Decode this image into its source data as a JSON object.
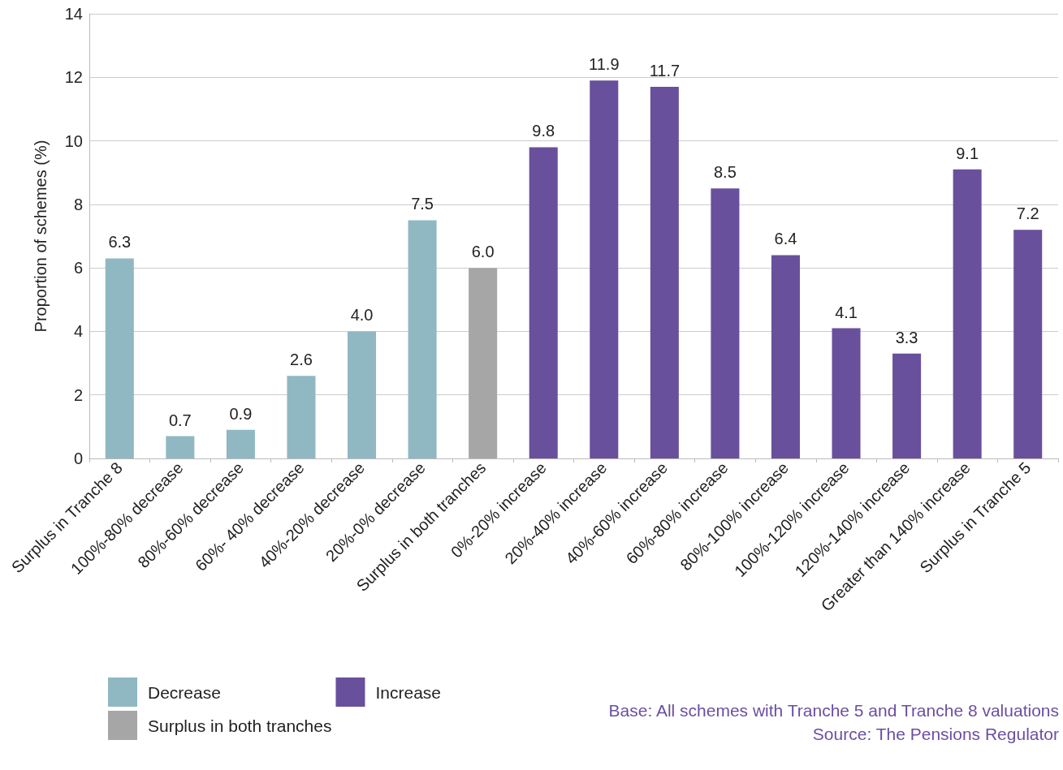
{
  "chart_data": {
    "type": "bar",
    "ylabel": "Proportion of schemes (%)",
    "categories": [
      "Surplus in Tranche 8",
      "100%-80% decrease",
      "80%-60% decrease",
      "60%- 40% decrease",
      "40%-20% decrease",
      "20%-0% decrease",
      "Surplus in both tranches",
      "0%-20% increase",
      "20%-40% increase",
      "40%-60% increase",
      "60%-80% increase",
      "80%-100% increase",
      "100%-120% increase",
      "120%-140% increase",
      "Greater than 140% increase",
      "Surplus in Tranche 5"
    ],
    "series": [
      {
        "name": "Decrease",
        "color": "#8fb8c2",
        "values": [
          6.3,
          0.7,
          0.9,
          2.6,
          4.0,
          7.5,
          null,
          null,
          null,
          null,
          null,
          null,
          null,
          null,
          null,
          null
        ],
        "value_labels": [
          "6.3",
          "0.7",
          "0.9",
          "2.6",
          "4.0",
          "7.5",
          null,
          null,
          null,
          null,
          null,
          null,
          null,
          null,
          null,
          null
        ]
      },
      {
        "name": "Surplus in both tranches",
        "color": "#a6a6a6",
        "values": [
          null,
          null,
          null,
          null,
          null,
          null,
          6.0,
          null,
          null,
          null,
          null,
          null,
          null,
          null,
          null,
          null
        ],
        "value_labels": [
          null,
          null,
          null,
          null,
          null,
          null,
          "6.0",
          null,
          null,
          null,
          null,
          null,
          null,
          null,
          null,
          null
        ]
      },
      {
        "name": "Increase",
        "color": "#68509c",
        "values": [
          null,
          null,
          null,
          null,
          null,
          null,
          null,
          9.8,
          11.9,
          11.7,
          8.5,
          6.4,
          4.1,
          3.3,
          9.1,
          7.2
        ],
        "value_labels": [
          null,
          null,
          null,
          null,
          null,
          null,
          null,
          "9.8",
          "11.9",
          "11.7",
          "8.5",
          "6.4",
          "4.1",
          "3.3",
          "9.1",
          "7.2"
        ]
      }
    ],
    "ylim": [
      0,
      14
    ],
    "yticks": [
      0,
      2,
      4,
      6,
      8,
      10,
      12,
      14
    ],
    "grid": "y",
    "legend": "bottom left",
    "annotations": [
      "Base: All schemes with Tranche 5 and Tranche 8 valuations",
      "Source: The Pensions Regulator"
    ]
  }
}
